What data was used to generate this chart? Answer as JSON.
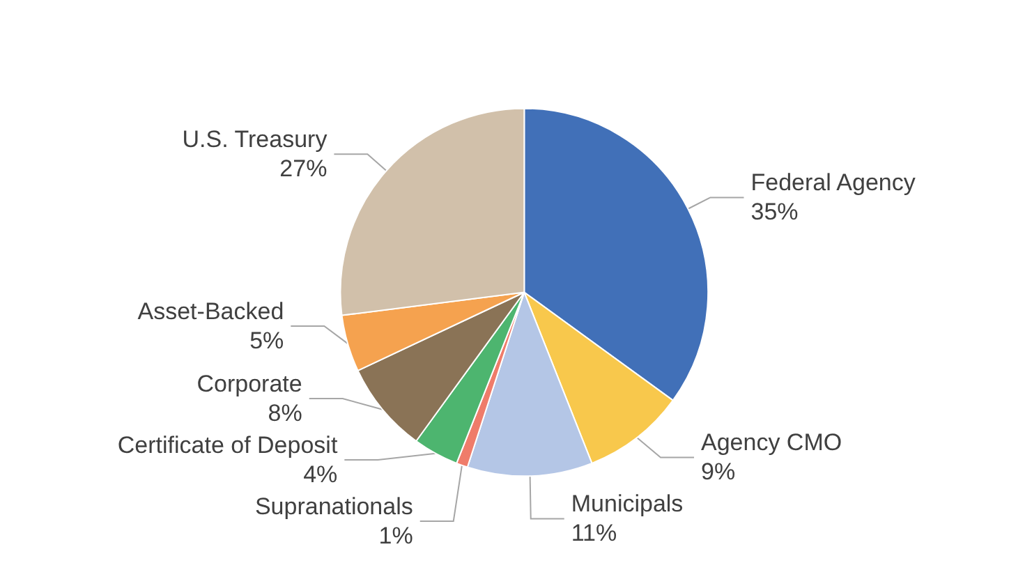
{
  "chart_data": {
    "type": "pie",
    "categories": [
      "Federal Agency",
      "Agency CMO",
      "Municipals",
      "Supranationals",
      "Certificate of Deposit",
      "Corporate",
      "Asset-Backed",
      "U.S. Treasury"
    ],
    "values": [
      35,
      9,
      11,
      1,
      4,
      8,
      5,
      27
    ],
    "colors": [
      "#4170b8",
      "#f8c84c",
      "#b4c6e6",
      "#ef7c6a",
      "#4db56f",
      "#8a7356",
      "#f5a24f",
      "#d1c0aa"
    ],
    "value_labels": [
      "35%",
      "9%",
      "11%",
      "1%",
      "4%",
      "8%",
      "5%",
      "27%"
    ]
  }
}
